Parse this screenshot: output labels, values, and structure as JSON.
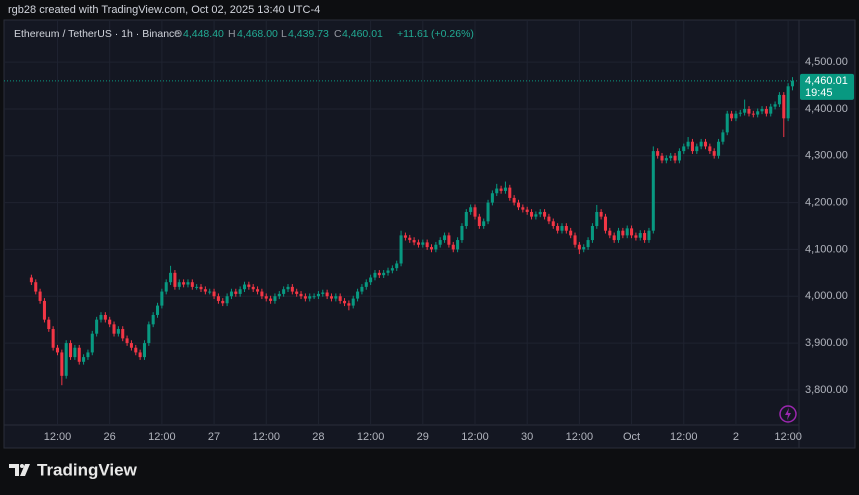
{
  "chart_data": {
    "type": "candlestick",
    "credit": "rgb28 created with TradingView.com, Oct 02, 2025 13:40 UTC-4",
    "title": "Ethereum / TetherUS · 1h · Binance",
    "legend": {
      "o_key": "O",
      "o": {
        "value": 4448.4,
        "label": "4,448.40"
      },
      "h_key": "H",
      "h": {
        "value": 4468,
        "label": "4,468.00"
      },
      "l_key": "L",
      "l": {
        "value": 4439.73,
        "label": "4,439.73"
      },
      "c_key": "C",
      "c": {
        "value": 4460.01,
        "label": "4,460.01"
      },
      "change": {
        "value": 11.61,
        "label": "+11.61"
      },
      "change_pct": {
        "value": 0.26,
        "label": "(+0.26%)"
      }
    },
    "last_price": {
      "value": 4460.01,
      "label": "4,460.01"
    },
    "countdown": "19:45",
    "brand": "TradingView",
    "up_color": "#089981",
    "down_color": "#f23645",
    "grid": true,
    "ylim": [
      3725,
      4590
    ],
    "yticks": [
      {
        "value": 3800,
        "label": "3,800.00"
      },
      {
        "value": 3900,
        "label": "3,900.00"
      },
      {
        "value": 4000,
        "label": "4,000.00"
      },
      {
        "value": 4100,
        "label": "4,100.00"
      },
      {
        "value": 4200,
        "label": "4,200.00"
      },
      {
        "value": 4300,
        "label": "4,300.00"
      },
      {
        "value": 4400,
        "label": "4,400.00"
      },
      {
        "value": 4500,
        "label": "4,500.00"
      }
    ],
    "xlim": [
      -6.3,
      176.5
    ],
    "xticks": [
      {
        "value": 6,
        "label": "12:00"
      },
      {
        "value": 18,
        "label": "26"
      },
      {
        "value": 30,
        "label": "12:00"
      },
      {
        "value": 42,
        "label": "27"
      },
      {
        "value": 54,
        "label": "12:00"
      },
      {
        "value": 66,
        "label": "28"
      },
      {
        "value": 78,
        "label": "12:00"
      },
      {
        "value": 90,
        "label": "29"
      },
      {
        "value": 102,
        "label": "12:00"
      },
      {
        "value": 114,
        "label": "30"
      },
      {
        "value": 126,
        "label": "12:00"
      },
      {
        "value": 138,
        "label": "Oct"
      },
      {
        "value": 150,
        "label": "12:00"
      },
      {
        "value": 162,
        "label": "2"
      },
      {
        "value": 174,
        "label": "12:00"
      }
    ],
    "open": [
      4040,
      4030,
      4010,
      3990,
      3950,
      3930,
      3890,
      3880,
      3830,
      3900,
      3870,
      3890,
      3860,
      3870,
      3880,
      3920,
      3950,
      3960,
      3950,
      3940,
      3920,
      3930,
      3910,
      3900,
      3890,
      3880,
      3870,
      3900,
      3940,
      3960,
      3980,
      4010,
      4030,
      4050,
      4020,
      4030,
      4025,
      4030,
      4020,
      4020,
      4015,
      4010,
      4010,
      4000,
      3990,
      3985,
      4000,
      4010,
      4005,
      4015,
      4025,
      4020,
      4015,
      4010,
      4000,
      3995,
      3990,
      4000,
      4005,
      4015,
      4020,
      4010,
      4005,
      4000,
      3995,
      4000,
      4000,
      4005,
      4008,
      4000,
      3995,
      4000,
      3990,
      3985,
      3980,
      3995,
      4010,
      4020,
      4030,
      4040,
      4050,
      4045,
      4050,
      4055,
      4060,
      4070,
      4130,
      4125,
      4120,
      4115,
      4110,
      4115,
      4105,
      4100,
      4110,
      4120,
      4130,
      4110,
      4100,
      4120,
      4150,
      4180,
      4190,
      4170,
      4150,
      4160,
      4200,
      4220,
      4230,
      4225,
      4232,
      4210,
      4200,
      4190,
      4185,
      4180,
      4170,
      4175,
      4180,
      4170,
      4160,
      4150,
      4140,
      4150,
      4140,
      4130,
      4110,
      4100,
      4105,
      4120,
      4150,
      4180,
      4170,
      4140,
      4130,
      4120,
      4140,
      4130,
      4145,
      4130,
      4125,
      4135,
      4120,
      4140,
      4310,
      4300,
      4290,
      4295,
      4300,
      4290,
      4310,
      4320,
      4330,
      4310,
      4320,
      4330,
      4320,
      4310,
      4300,
      4330,
      4350,
      4390,
      4380,
      4390,
      4392,
      4400,
      4390,
      4388,
      4395,
      4400,
      4390,
      4405,
      4410,
      4430,
      4380,
      4448.4
    ],
    "high": [
      4046,
      4036,
      4016,
      3996,
      3956,
      3936,
      3896,
      3886,
      3906,
      3906,
      3896,
      3896,
      3876,
      3886,
      3926,
      3956,
      3966,
      3966,
      3956,
      3946,
      3936,
      3936,
      3916,
      3906,
      3896,
      3886,
      3906,
      3946,
      3966,
      3986,
      4016,
      4036,
      4065,
      4056,
      4036,
      4036,
      4036,
      4036,
      4026,
      4026,
      4021,
      4016,
      4016,
      4006,
      3996,
      4006,
      4016,
      4016,
      4021,
      4031,
      4031,
      4026,
      4021,
      4016,
      4006,
      4001,
      4006,
      4011,
      4021,
      4026,
      4026,
      4016,
      4011,
      4006,
      4006,
      4006,
      4011,
      4014,
      4014,
      4006,
      4006,
      4006,
      3996,
      3991,
      4001,
      4016,
      4026,
      4036,
      4046,
      4056,
      4056,
      4056,
      4061,
      4066,
      4076,
      4140,
      4136,
      4131,
      4126,
      4121,
      4121,
      4121,
      4111,
      4116,
      4126,
      4136,
      4136,
      4116,
      4126,
      4156,
      4186,
      4196,
      4196,
      4176,
      4166,
      4206,
      4226,
      4240,
      4236,
      4245,
      4238,
      4216,
      4206,
      4196,
      4191,
      4186,
      4181,
      4186,
      4186,
      4176,
      4166,
      4156,
      4156,
      4156,
      4146,
      4136,
      4116,
      4111,
      4126,
      4156,
      4195,
      4186,
      4176,
      4146,
      4136,
      4146,
      4146,
      4151,
      4151,
      4136,
      4141,
      4141,
      4146,
      4320,
      4316,
      4306,
      4301,
      4306,
      4306,
      4316,
      4326,
      4340,
      4336,
      4326,
      4336,
      4336,
      4326,
      4316,
      4336,
      4356,
      4396,
      4396,
      4396,
      4398,
      4420,
      4406,
      4396,
      4401,
      4406,
      4406,
      4411,
      4416,
      4436,
      4436,
      4455,
      4468
    ],
    "low": [
      4024,
      4004,
      3984,
      3944,
      3924,
      3884,
      3874,
      3810,
      3824,
      3864,
      3864,
      3854,
      3854,
      3864,
      3874,
      3914,
      3944,
      3944,
      3934,
      3914,
      3914,
      3904,
      3894,
      3884,
      3874,
      3864,
      3864,
      3894,
      3934,
      3954,
      3974,
      4004,
      4024,
      4014,
      4014,
      4019,
      4019,
      4014,
      4014,
      4009,
      4004,
      4004,
      3994,
      3984,
      3979,
      3979,
      3994,
      3999,
      3999,
      4009,
      4014,
      4009,
      4004,
      3994,
      3989,
      3984,
      3984,
      3994,
      3999,
      4009,
      4004,
      3999,
      3994,
      3989,
      3989,
      3994,
      3994,
      3999,
      3994,
      3989,
      3989,
      3984,
      3979,
      3970,
      3974,
      3989,
      4004,
      4014,
      4024,
      4034,
      4039,
      4039,
      4044,
      4049,
      4054,
      4064,
      4119,
      4114,
      4109,
      4104,
      4104,
      4099,
      4094,
      4094,
      4104,
      4114,
      4104,
      4094,
      4094,
      4114,
      4144,
      4174,
      4164,
      4144,
      4144,
      4154,
      4194,
      4214,
      4219,
      4219,
      4204,
      4194,
      4184,
      4179,
      4174,
      4164,
      4164,
      4169,
      4164,
      4154,
      4144,
      4134,
      4134,
      4134,
      4124,
      4104,
      4090,
      4094,
      4099,
      4114,
      4144,
      4164,
      4134,
      4124,
      4114,
      4114,
      4124,
      4124,
      4124,
      4119,
      4119,
      4114,
      4114,
      4134,
      4294,
      4284,
      4284,
      4289,
      4284,
      4284,
      4304,
      4314,
      4304,
      4304,
      4314,
      4314,
      4304,
      4294,
      4294,
      4324,
      4344,
      4374,
      4374,
      4384,
      4386,
      4384,
      4382,
      4382,
      4389,
      4384,
      4384,
      4399,
      4404,
      4340,
      4374,
      4439.73
    ],
    "close": [
      4030,
      4010,
      3990,
      3950,
      3930,
      3890,
      3880,
      3830,
      3900,
      3870,
      3890,
      3860,
      3870,
      3880,
      3920,
      3950,
      3960,
      3950,
      3940,
      3920,
      3930,
      3910,
      3900,
      3890,
      3880,
      3870,
      3900,
      3940,
      3960,
      3980,
      4010,
      4030,
      4050,
      4020,
      4030,
      4025,
      4030,
      4020,
      4020,
      4015,
      4010,
      4010,
      4000,
      3990,
      3985,
      4000,
      4010,
      4005,
      4015,
      4025,
      4020,
      4015,
      4010,
      4000,
      3995,
      3990,
      4000,
      4005,
      4015,
      4020,
      4010,
      4005,
      4000,
      3995,
      4000,
      4000,
      4005,
      4008,
      4000,
      3995,
      4000,
      3990,
      3985,
      3980,
      3995,
      4010,
      4020,
      4030,
      4040,
      4050,
      4045,
      4050,
      4055,
      4060,
      4070,
      4130,
      4125,
      4120,
      4115,
      4110,
      4115,
      4105,
      4100,
      4110,
      4120,
      4130,
      4110,
      4100,
      4120,
      4150,
      4180,
      4190,
      4170,
      4150,
      4160,
      4200,
      4220,
      4230,
      4225,
      4232,
      4210,
      4200,
      4190,
      4185,
      4180,
      4170,
      4175,
      4180,
      4170,
      4160,
      4150,
      4140,
      4150,
      4140,
      4130,
      4110,
      4100,
      4105,
      4120,
      4150,
      4180,
      4170,
      4140,
      4130,
      4120,
      4140,
      4130,
      4145,
      4130,
      4125,
      4135,
      4120,
      4140,
      4310,
      4300,
      4290,
      4295,
      4300,
      4290,
      4310,
      4320,
      4330,
      4310,
      4320,
      4330,
      4320,
      4310,
      4300,
      4330,
      4350,
      4390,
      4380,
      4390,
      4392,
      4400,
      4390,
      4388,
      4395,
      4400,
      4390,
      4405,
      4410,
      4430,
      4380,
      4448.4,
      4460.01
    ]
  }
}
